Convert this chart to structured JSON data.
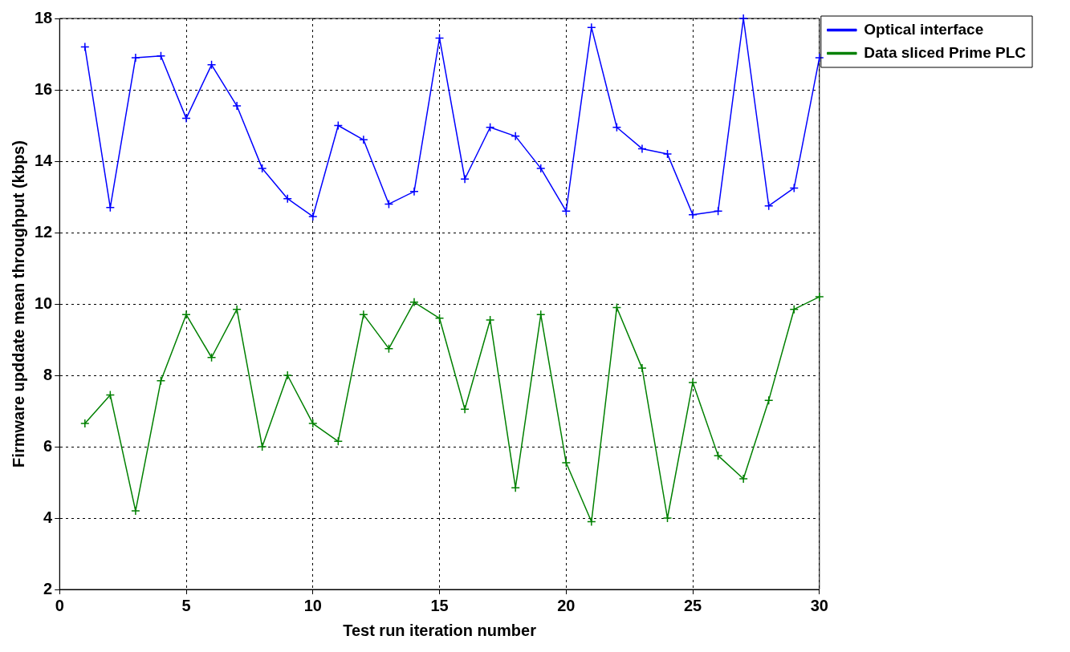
{
  "chart_data": {
    "type": "line",
    "xlabel": "Test run iteration number",
    "ylabel": "Firmware upddate mean throughput (kbps)",
    "x": [
      1,
      2,
      3,
      4,
      5,
      6,
      7,
      8,
      9,
      10,
      11,
      12,
      13,
      14,
      15,
      16,
      17,
      18,
      19,
      20,
      21,
      22,
      23,
      24,
      25,
      26,
      27,
      28,
      29,
      30
    ],
    "series": [
      {
        "name": "Optical interface",
        "color": "#0000ff",
        "values": [
          17.2,
          12.7,
          16.9,
          16.95,
          15.2,
          16.7,
          15.55,
          13.8,
          12.95,
          12.45,
          15.0,
          14.6,
          12.8,
          13.15,
          17.45,
          13.5,
          14.95,
          14.7,
          13.8,
          12.6,
          17.75,
          14.95,
          14.35,
          14.2,
          12.5,
          12.6,
          18.0,
          12.75,
          13.25,
          16.9
        ]
      },
      {
        "name": "Data sliced Prime PLC",
        "color": "#008000",
        "values": [
          6.65,
          7.45,
          4.2,
          7.85,
          9.7,
          8.5,
          9.85,
          6.0,
          8.0,
          6.65,
          6.15,
          9.7,
          8.75,
          10.05,
          9.6,
          7.05,
          9.55,
          4.85,
          9.7,
          5.55,
          3.9,
          9.9,
          8.2,
          4.0,
          7.8,
          5.75,
          5.1,
          7.3,
          9.85,
          10.2
        ]
      }
    ],
    "xlim": [
      0,
      30
    ],
    "xticks": [
      0,
      5,
      10,
      15,
      20,
      25,
      30
    ],
    "ylim": [
      2,
      18
    ],
    "yticks": [
      2,
      4,
      6,
      8,
      10,
      12,
      14,
      16,
      18
    ],
    "grid": true,
    "legend": "top right",
    "marker": "cross",
    "line_style": "solid"
  }
}
